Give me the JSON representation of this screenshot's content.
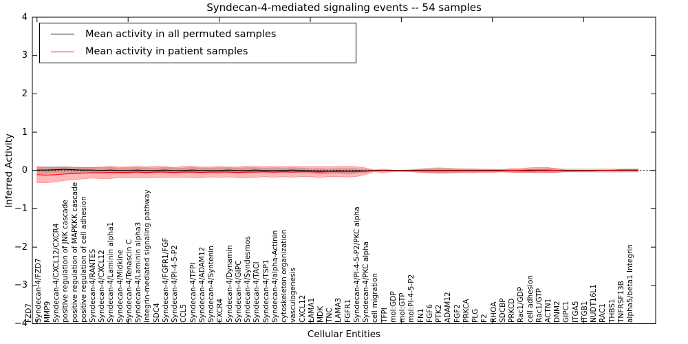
{
  "title": "Syndecan-4-mediated signaling events -- 54 samples",
  "axes": {
    "ylabel": "Inferred Activity",
    "xlabel": "Cellular Entities",
    "yticks": [
      "4",
      "3",
      "2",
      "1",
      "0",
      "−1",
      "−2",
      "−3",
      "−4"
    ],
    "ylim": [
      -4,
      4
    ]
  },
  "legend": {
    "entries": [
      {
        "label": "Mean activity in all permuted samples",
        "color": "#000000"
      },
      {
        "label": "Mean activity in patient samples",
        "color": "#ff0000"
      }
    ],
    "position": "upper-left"
  },
  "colors": {
    "patient_line": "#ff0000",
    "patient_band": "rgba(255,0,0,0.28)",
    "patient_band_edge": "rgba(255,80,80,0.55)",
    "permuted_line": "#000000",
    "permuted_band": "rgba(120,120,120,0.35)",
    "zero_line": "#000000",
    "frame": "#000000"
  },
  "chart_data": {
    "type": "line",
    "title": "Syndecan-4-mediated signaling events -- 54 samples",
    "xlabel": "Cellular Entities",
    "ylabel": "Inferred Activity",
    "ylim": [
      -4,
      4
    ],
    "grid": false,
    "zero_reference_line": true,
    "legend_position": "upper-left",
    "categories": [
      "FZD7",
      "Syndecan-4/FZD7",
      "MMP9",
      "Syndecan-4/CXCL12/CXCR4",
      "positive regulation of JNK cascade",
      "positive regulation of MAPKKK cascade",
      "positive regulation of cell adhesion",
      "Syndecan-4/RANTES",
      "Syndecan-4/CXCL12",
      "Syndecan-4/Laminin alpha1",
      "Syndecan-4/Midkine",
      "Syndecan-4/Tenascin C",
      "Syndecan-4/Laminin alpha3",
      "integrin-mediated signaling pathway",
      "SDC4",
      "Syndecan-4/FGFR1/FGF",
      "Syndecan-4/PI-4-5-P2",
      "CCL5",
      "Syndecan-4/TFPI",
      "Syndecan-4/ADAM12",
      "Syndecan-4/Syntenin",
      "CXCR4",
      "Syndecan-4/Dynamin",
      "Syndecan-4/GIPC",
      "Syndecan-4/Syndesmos",
      "Syndecan-4/TACI",
      "Syndecan-4/TSP1",
      "Syndecan-4/alpha-Actinin",
      "cytoskeleton organization",
      "vasculogenesis",
      "CXCL12",
      "LAMA1",
      "MDK",
      "TNC",
      "LAMA3",
      "FGFR1",
      "Syndecan-4/PI-4-5-P2/PKC alpha",
      "Syndecan-4/PKC alpha",
      "cell migration",
      "TFPI",
      "mol:GDP",
      "mol:GTP",
      "mol:PI-4-5-P2",
      "FN1",
      "FGF6",
      "PTK2",
      "ADAM12",
      "FGF2",
      "PRKCA",
      "PLG",
      "F2",
      "RHOA",
      "SDCBP",
      "PRKCD",
      "Rac1/GDP",
      "cell adhesion",
      "Rac1/GTP",
      "ACTN1",
      "DNM2",
      "GIPC1",
      "ITGA5",
      "ITGB1",
      "NUDT16L1",
      "RAC1",
      "THBS1",
      "TNFRSF13B",
      "alpha5/beta1 Integrin"
    ],
    "series": [
      {
        "name": "Mean activity in all permuted samples",
        "color": "#000000",
        "values": [
          0.01,
          0.01,
          0.02,
          0.03,
          0.02,
          0.01,
          0.01,
          0.0,
          0.01,
          0.0,
          0.0,
          0.01,
          0.0,
          0.0,
          0.01,
          0.0,
          0.0,
          0.01,
          0.0,
          0.0,
          0.0,
          0.01,
          0.0,
          0.0,
          0.01,
          0.0,
          0.0,
          0.0,
          0.01,
          0.0,
          -0.01,
          -0.02,
          -0.02,
          -0.01,
          -0.02,
          -0.01,
          -0.01,
          0.0,
          0.0,
          0.0,
          0.0,
          0.0,
          0.0,
          0.0,
          0.0,
          0.0,
          0.0,
          0.0,
          0.0,
          0.0,
          0.0,
          0.0,
          0.0,
          -0.01,
          -0.01,
          0.0,
          0.0,
          0.0,
          0.0,
          0.0,
          0.0,
          0.0,
          0.0,
          0.0,
          0.0,
          0.0,
          0.0
        ],
        "band_halfwidth": [
          0.1,
          0.1,
          0.09,
          0.09,
          0.08,
          0.08,
          0.08,
          0.08,
          0.08,
          0.07,
          0.08,
          0.07,
          0.08,
          0.07,
          0.08,
          0.07,
          0.07,
          0.08,
          0.07,
          0.07,
          0.08,
          0.07,
          0.07,
          0.08,
          0.07,
          0.07,
          0.08,
          0.07,
          0.07,
          0.07,
          0.07,
          0.08,
          0.07,
          0.07,
          0.08,
          0.07,
          0.05,
          0.02,
          0.02,
          0.02,
          0.02,
          0.03,
          0.05,
          0.07,
          0.08,
          0.07,
          0.06,
          0.05,
          0.05,
          0.04,
          0.04,
          0.04,
          0.04,
          0.05,
          0.05,
          0.05,
          0.06,
          0.06,
          0.05,
          0.05,
          0.05,
          0.05,
          0.05,
          0.05,
          0.05,
          0.05,
          0.05
        ]
      },
      {
        "name": "Mean activity in patient samples",
        "color": "#ff0000",
        "values": [
          -0.11,
          -0.12,
          -0.11,
          -0.09,
          -0.08,
          -0.07,
          -0.06,
          -0.06,
          -0.05,
          -0.05,
          -0.05,
          -0.04,
          -0.05,
          -0.04,
          -0.04,
          -0.05,
          -0.04,
          -0.04,
          -0.05,
          -0.04,
          -0.04,
          -0.04,
          -0.05,
          -0.04,
          -0.04,
          -0.03,
          -0.04,
          -0.03,
          -0.04,
          -0.03,
          -0.03,
          -0.04,
          -0.03,
          -0.03,
          -0.03,
          -0.03,
          -0.02,
          -0.01,
          -0.01,
          -0.01,
          -0.01,
          -0.01,
          -0.01,
          -0.01,
          -0.01,
          -0.01,
          -0.01,
          -0.01,
          -0.01,
          -0.01,
          -0.01,
          -0.01,
          0.0,
          0.0,
          0.01,
          0.01,
          0.01,
          0.0,
          -0.01,
          -0.01,
          -0.01,
          -0.01,
          0.0,
          0.0,
          0.01,
          0.01,
          0.01
        ],
        "band_halfwidth": [
          0.21,
          0.2,
          0.19,
          0.17,
          0.16,
          0.15,
          0.14,
          0.15,
          0.16,
          0.14,
          0.14,
          0.15,
          0.14,
          0.15,
          0.14,
          0.13,
          0.14,
          0.15,
          0.14,
          0.13,
          0.14,
          0.13,
          0.14,
          0.15,
          0.14,
          0.13,
          0.14,
          0.13,
          0.14,
          0.13,
          0.13,
          0.14,
          0.13,
          0.13,
          0.14,
          0.13,
          0.09,
          0.02,
          0.05,
          0.02,
          0.015,
          0.02,
          0.04,
          0.05,
          0.06,
          0.06,
          0.05,
          0.05,
          0.05,
          0.04,
          0.04,
          0.03,
          0.05,
          0.05,
          0.06,
          0.075,
          0.07,
          0.05,
          0.02,
          0.015,
          0.015,
          0.015,
          0.015,
          0.015,
          0.02,
          0.02,
          0.025
        ]
      }
    ]
  }
}
